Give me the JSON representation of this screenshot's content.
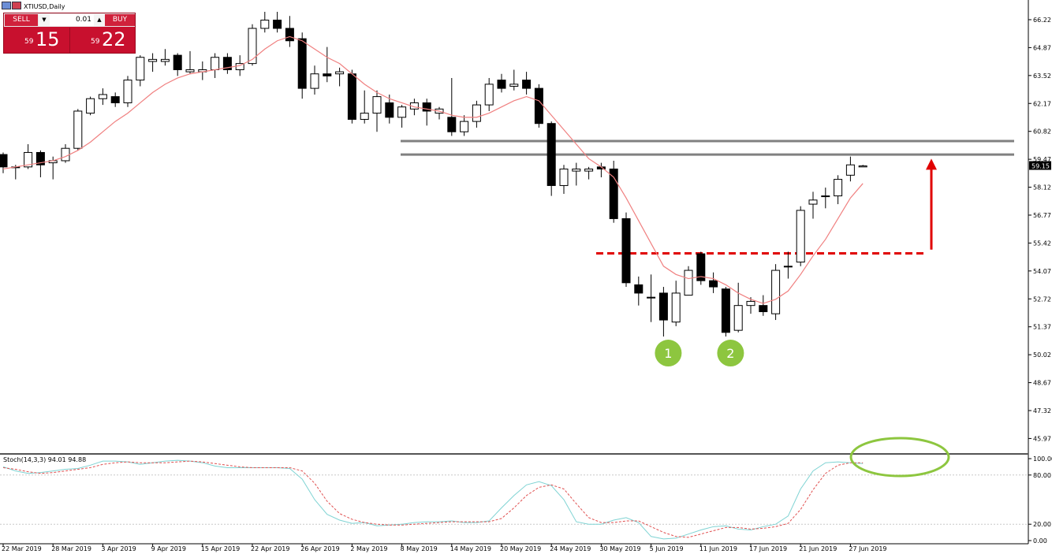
{
  "window": {
    "title": "XTIUSD,Daily"
  },
  "trade_panel": {
    "sell_label": "SELL",
    "buy_label": "BUY",
    "lot_value": "0.01",
    "sell_price_prefix": "59",
    "sell_price_big": "15",
    "buy_price_prefix": "59",
    "buy_price_big": "22"
  },
  "indicator": {
    "label": "Stoch(14,3,3) 94.01 94.88"
  },
  "colors": {
    "bull_candle": "#ffffff",
    "bear_candle": "#000000",
    "ma_line": "#f08080",
    "stoch_main": "#7fd3d3",
    "stoch_signal": "#e05050",
    "resistance": "#808080",
    "neckline": "#e00000",
    "arrow": "#e00000",
    "marker": "#8dc63f",
    "highlight_ellipse": "#8dc63f"
  },
  "chart_data": {
    "type": "candlestick",
    "symbol": "XTIUSD",
    "timeframe": "Daily",
    "ylim": [
      45.3,
      66.6
    ],
    "y_ticks": [
      "66.22",
      "64.87",
      "63.52",
      "62.17",
      "60.82",
      "59.47",
      "58.12",
      "56.77",
      "55.42",
      "54.07",
      "52.72",
      "51.37",
      "50.02",
      "48.67",
      "47.32",
      "45.97"
    ],
    "current_price_label": "59.15",
    "current_price": 59.15,
    "x_ticks": [
      "22 Mar 2019",
      "28 Mar 2019",
      "3 Apr 2019",
      "9 Apr 2019",
      "15 Apr 2019",
      "22 Apr 2019",
      "26 Apr 2019",
      "2 May 2019",
      "8 May 2019",
      "14 May 2019",
      "20 May 2019",
      "24 May 2019",
      "30 May 2019",
      "5 Jun 2019",
      "11 Jun 2019",
      "17 Jun 2019",
      "21 Jun 2019",
      "27 Jun 2019"
    ],
    "x_tick_index": [
      0,
      4,
      8,
      12,
      16,
      20,
      24,
      28,
      32,
      36,
      40,
      44,
      48,
      52,
      56,
      60,
      64,
      68
    ],
    "candles": [
      [
        59.7,
        59.1,
        59.8,
        58.8
      ],
      [
        59.1,
        59.1,
        59.2,
        58.5
      ],
      [
        59.1,
        59.8,
        60.2,
        59.0
      ],
      [
        59.8,
        59.2,
        59.9,
        58.6
      ],
      [
        59.3,
        59.4,
        59.6,
        58.5
      ],
      [
        59.4,
        60.0,
        60.2,
        59.3
      ],
      [
        60.0,
        61.8,
        61.9,
        59.9
      ],
      [
        61.7,
        62.4,
        62.5,
        61.6
      ],
      [
        62.4,
        62.6,
        62.9,
        62.1
      ],
      [
        62.5,
        62.2,
        62.7,
        62.0
      ],
      [
        62.2,
        63.3,
        63.5,
        62.0
      ],
      [
        63.3,
        64.4,
        64.5,
        63.0
      ],
      [
        64.2,
        64.3,
        64.6,
        63.7
      ],
      [
        64.2,
        64.3,
        64.8,
        64.0
      ],
      [
        64.5,
        63.8,
        64.6,
        63.5
      ],
      [
        63.7,
        63.8,
        64.7,
        63.6
      ],
      [
        63.7,
        63.8,
        64.2,
        63.3
      ],
      [
        63.8,
        64.4,
        64.6,
        63.4
      ],
      [
        64.4,
        63.8,
        64.6,
        63.6
      ],
      [
        63.8,
        64.1,
        64.5,
        63.5
      ],
      [
        64.1,
        65.8,
        66.0,
        64.0
      ],
      [
        65.8,
        66.2,
        66.6,
        65.6
      ],
      [
        66.2,
        65.8,
        66.6,
        65.6
      ],
      [
        65.8,
        65.2,
        66.4,
        64.9
      ],
      [
        65.3,
        62.9,
        65.6,
        62.4
      ],
      [
        62.9,
        63.6,
        64.0,
        62.6
      ],
      [
        63.6,
        63.5,
        64.9,
        63.2
      ],
      [
        63.6,
        63.7,
        63.9,
        63.0
      ],
      [
        63.6,
        61.4,
        63.8,
        61.2
      ],
      [
        61.4,
        61.7,
        62.8,
        61.2
      ],
      [
        61.7,
        62.5,
        62.8,
        60.8
      ],
      [
        62.2,
        61.5,
        62.6,
        61.2
      ],
      [
        61.5,
        62.0,
        62.1,
        61.0
      ],
      [
        61.9,
        62.2,
        62.4,
        61.6
      ],
      [
        62.2,
        61.8,
        62.4,
        61.1
      ],
      [
        61.7,
        61.9,
        62.0,
        61.4
      ],
      [
        61.5,
        60.8,
        63.4,
        60.6
      ],
      [
        60.8,
        61.3,
        61.6,
        60.6
      ],
      [
        61.3,
        62.1,
        62.3,
        61.0
      ],
      [
        62.1,
        63.1,
        63.4,
        61.8
      ],
      [
        63.3,
        62.9,
        63.6,
        62.7
      ],
      [
        63.0,
        63.1,
        63.8,
        62.8
      ],
      [
        63.3,
        62.9,
        63.7,
        62.6
      ],
      [
        62.9,
        61.2,
        63.1,
        61.0
      ],
      [
        61.2,
        58.2,
        61.3,
        57.7
      ],
      [
        58.2,
        59.0,
        59.2,
        57.8
      ],
      [
        58.9,
        59.0,
        59.3,
        58.2
      ],
      [
        58.9,
        59.0,
        59.1,
        58.5
      ],
      [
        59.1,
        59.0,
        59.3,
        58.6
      ],
      [
        59.0,
        56.6,
        59.4,
        56.4
      ],
      [
        56.6,
        53.5,
        56.9,
        53.3
      ],
      [
        53.4,
        53.0,
        53.8,
        52.4
      ],
      [
        52.8,
        52.8,
        53.9,
        51.6
      ],
      [
        53.0,
        51.7,
        53.3,
        50.9
      ],
      [
        51.6,
        53.0,
        53.6,
        51.4
      ],
      [
        52.9,
        54.1,
        54.3,
        52.9
      ],
      [
        54.9,
        53.6,
        55.0,
        53.4
      ],
      [
        53.6,
        53.3,
        54.0,
        53.0
      ],
      [
        53.2,
        51.1,
        53.3,
        50.9
      ],
      [
        51.2,
        52.4,
        53.5,
        51.1
      ],
      [
        52.4,
        52.6,
        52.8,
        52.0
      ],
      [
        52.4,
        52.1,
        52.9,
        51.9
      ],
      [
        52.0,
        54.1,
        54.4,
        51.7
      ],
      [
        54.3,
        54.3,
        55.0,
        53.7
      ],
      [
        54.5,
        57.0,
        57.2,
        54.3
      ],
      [
        57.3,
        57.5,
        57.9,
        56.6
      ],
      [
        57.7,
        57.7,
        58.1,
        57.1
      ],
      [
        57.7,
        58.5,
        58.7,
        57.3
      ],
      [
        58.7,
        59.2,
        59.6,
        58.4
      ],
      [
        59.1,
        59.15,
        59.2,
        59.1
      ]
    ],
    "moving_average": [
      59.0,
      59.1,
      59.2,
      59.3,
      59.4,
      59.6,
      59.9,
      60.3,
      60.8,
      61.3,
      61.7,
      62.2,
      62.7,
      63.1,
      63.4,
      63.6,
      63.7,
      63.8,
      63.9,
      64.0,
      64.3,
      64.8,
      65.2,
      65.4,
      65.2,
      64.8,
      64.4,
      64.1,
      63.6,
      63.1,
      62.7,
      62.4,
      62.2,
      62.0,
      61.9,
      61.8,
      61.6,
      61.5,
      61.5,
      61.7,
      62.0,
      62.3,
      62.5,
      62.3,
      61.6,
      60.9,
      60.2,
      59.5,
      59.1,
      58.6,
      57.6,
      56.5,
      55.4,
      54.3,
      53.9,
      53.7,
      53.8,
      53.7,
      53.4,
      53.0,
      52.7,
      52.5,
      52.7,
      53.1,
      53.9,
      54.8,
      55.6,
      56.6,
      57.6,
      58.3
    ],
    "resistance_levels": [
      60.35,
      59.7
    ],
    "neckline_level": 54.92,
    "markers": [
      {
        "label": "1",
        "index": 53,
        "price": 50.1
      },
      {
        "label": "2",
        "index": 58,
        "price": 50.1
      }
    ],
    "stochastic": {
      "name": "Stoch(14,3,3)",
      "main_value": "94.01",
      "signal_value": "94.88",
      "ylim": [
        0,
        100
      ],
      "y_ticks": [
        "100.00",
        "80.00",
        "20.00",
        "0.00"
      ],
      "levels": [
        80,
        20
      ],
      "main": [
        90,
        85,
        82,
        83,
        85,
        87,
        88,
        92,
        97,
        97,
        96,
        93,
        95,
        97,
        98,
        97,
        95,
        91,
        89,
        89,
        89,
        89,
        89,
        88,
        75,
        50,
        32,
        25,
        21,
        22,
        18,
        19,
        20,
        22,
        23,
        23,
        24,
        22,
        22,
        24,
        40,
        55,
        68,
        72,
        67,
        50,
        23,
        20,
        20,
        25,
        28,
        22,
        5,
        2,
        3,
        8,
        13,
        17,
        18,
        14,
        13,
        17,
        20,
        30,
        63,
        85,
        95,
        96,
        95,
        94
      ],
      "signal": [
        89,
        87,
        84,
        82,
        83,
        85,
        87,
        89,
        93,
        95,
        96,
        95,
        95,
        95,
        96,
        97,
        96,
        94,
        92,
        90,
        89,
        89,
        89,
        89,
        85,
        70,
        48,
        33,
        26,
        22,
        20,
        19,
        19,
        20,
        21,
        22,
        23,
        23,
        23,
        23,
        27,
        40,
        55,
        65,
        68,
        63,
        45,
        28,
        22,
        22,
        24,
        24,
        17,
        10,
        5,
        4,
        8,
        12,
        16,
        16,
        14,
        15,
        17,
        21,
        38,
        62,
        82,
        92,
        95,
        95
      ]
    }
  }
}
